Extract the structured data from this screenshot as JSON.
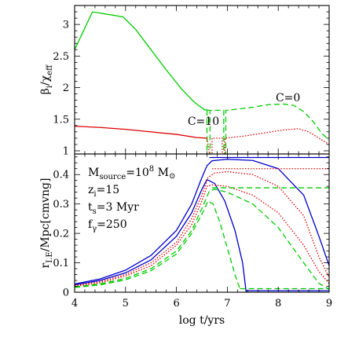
{
  "chart_data": [
    {
      "type": "line",
      "panel": "top",
      "ylabel": "β_i / χ_eff",
      "xlim": [
        4,
        9
      ],
      "ylim": [
        0.95,
        3.3
      ],
      "xticks": [
        "4",
        "5",
        "6",
        "7",
        "8",
        "9"
      ],
      "yticks": [
        1,
        1.5,
        2,
        2.5,
        3
      ],
      "ytick_labels": [
        "1",
        "1.5",
        "2",
        "2.5",
        "3"
      ],
      "annotations": [
        {
          "text": "C=10",
          "x": 6.22,
          "y": 1.41
        },
        {
          "text": "C=0",
          "x": 7.95,
          "y": 1.78
        }
      ],
      "series": [
        {
          "color": "#00cc00",
          "dash": "solid",
          "points": [
            [
              4.0,
              2.6
            ],
            [
              4.35,
              3.2
            ],
            [
              4.95,
              3.12
            ],
            [
              5.2,
              2.92
            ],
            [
              5.5,
              2.6
            ],
            [
              5.8,
              2.28
            ],
            [
              6.1,
              1.98
            ],
            [
              6.35,
              1.77
            ],
            [
              6.55,
              1.65
            ],
            [
              6.65,
              1.64
            ]
          ]
        },
        {
          "color": "#00cc00",
          "dash": "dashed",
          "points": [
            [
              6.6,
              1.64
            ],
            [
              6.6,
              0.95
            ],
            [
              6.66,
              0.95
            ],
            [
              6.66,
              1.64
            ],
            [
              6.93,
              1.64
            ],
            [
              6.93,
              0.95
            ],
            [
              6.97,
              0.95
            ],
            [
              6.97,
              1.64
            ],
            [
              7.2,
              1.66
            ],
            [
              7.5,
              1.69
            ],
            [
              7.8,
              1.73
            ],
            [
              8.1,
              1.74
            ],
            [
              8.3,
              1.72
            ],
            [
              8.5,
              1.62
            ],
            [
              8.7,
              1.45
            ],
            [
              8.85,
              1.28
            ],
            [
              9.0,
              1.17
            ]
          ]
        },
        {
          "color": "#dd0000",
          "dash": "solid",
          "points": [
            [
              4.0,
              1.39
            ],
            [
              4.5,
              1.37
            ],
            [
              5.0,
              1.34
            ],
            [
              5.5,
              1.3
            ],
            [
              6.0,
              1.26
            ],
            [
              6.4,
              1.21
            ],
            [
              6.6,
              1.2
            ]
          ]
        },
        {
          "color": "#dd0000",
          "dash": "dotted",
          "points": [
            [
              6.6,
              1.2
            ],
            [
              6.65,
              0.95
            ],
            [
              6.7,
              0.95
            ],
            [
              6.7,
              1.2
            ],
            [
              6.9,
              1.2
            ],
            [
              6.9,
              0.95
            ],
            [
              6.95,
              0.95
            ],
            [
              6.95,
              1.2
            ],
            [
              7.3,
              1.23
            ],
            [
              7.7,
              1.28
            ],
            [
              8.1,
              1.33
            ],
            [
              8.4,
              1.35
            ],
            [
              8.6,
              1.3
            ],
            [
              8.8,
              1.2
            ],
            [
              9.0,
              1.1
            ]
          ]
        }
      ]
    },
    {
      "type": "line",
      "panel": "bottom",
      "xlabel": "log t/yrs",
      "ylabel": "r_I.E / Mpc[cmvng]",
      "xlim": [
        4,
        9
      ],
      "ylim": [
        0,
        0.47
      ],
      "xticks": [
        "4",
        "5",
        "6",
        "7",
        "8",
        "9"
      ],
      "yticks": [
        0,
        0.1,
        0.2,
        0.3,
        0.4
      ],
      "ytick_labels": [
        "0",
        "0.1",
        "0.2",
        "0.3",
        "0.4"
      ],
      "legend_text": [
        {
          "main": "M",
          "sub": "source",
          "rest": "=10",
          "sup": "8",
          "tail": " M",
          "sym": "⊙"
        },
        {
          "main": "z",
          "sub": "i",
          "rest": "=15"
        },
        {
          "main": "t",
          "sub": "s",
          "rest": "=3 Myr"
        },
        {
          "main": "f",
          "sub": "γ",
          "rest": "=250"
        }
      ],
      "series": [
        {
          "color": "#0000cc",
          "dash": "solid",
          "points": [
            [
              4.0,
              0.028
            ],
            [
              4.5,
              0.045
            ],
            [
              5.0,
              0.075
            ],
            [
              5.5,
              0.125
            ],
            [
              6.0,
              0.21
            ],
            [
              6.3,
              0.3
            ],
            [
              6.5,
              0.39
            ],
            [
              6.6,
              0.43
            ],
            [
              6.7,
              0.447
            ],
            [
              7.0,
              0.452
            ],
            [
              7.5,
              0.448
            ],
            [
              8.0,
              0.42
            ],
            [
              8.5,
              0.33
            ],
            [
              8.8,
              0.19
            ],
            [
              9.0,
              0.09
            ]
          ]
        },
        {
          "color": "#0000cc",
          "dash": "solid",
          "points": [
            [
              4.0,
              0.025
            ],
            [
              4.5,
              0.04
            ],
            [
              5.0,
              0.066
            ],
            [
              5.5,
              0.11
            ],
            [
              6.0,
              0.19
            ],
            [
              6.3,
              0.27
            ],
            [
              6.5,
              0.35
            ],
            [
              6.6,
              0.383
            ],
            [
              6.75,
              0.37
            ],
            [
              6.95,
              0.31
            ],
            [
              7.15,
              0.21
            ],
            [
              7.3,
              0.1
            ],
            [
              7.37,
              0.0
            ]
          ]
        },
        {
          "color": "#0000cc",
          "dash": "solid",
          "points": [
            [
              6.65,
              0.458
            ],
            [
              9.0,
              0.458
            ]
          ]
        },
        {
          "color": "#0000cc",
          "dash": "solid",
          "points": [
            [
              7.37,
              0.005
            ],
            [
              9.0,
              0.005
            ]
          ]
        },
        {
          "color": "#dd0000",
          "dash": "dotted",
          "points": [
            [
              4.0,
              0.023
            ],
            [
              4.5,
              0.036
            ],
            [
              5.0,
              0.06
            ],
            [
              5.5,
              0.1
            ],
            [
              6.0,
              0.17
            ],
            [
              6.3,
              0.25
            ],
            [
              6.5,
              0.33
            ],
            [
              6.62,
              0.39
            ],
            [
              6.75,
              0.405
            ],
            [
              7.0,
              0.41
            ],
            [
              7.5,
              0.4
            ],
            [
              8.0,
              0.36
            ],
            [
              8.5,
              0.26
            ],
            [
              8.8,
              0.12
            ],
            [
              9.0,
              0.05
            ]
          ]
        },
        {
          "color": "#dd0000",
          "dash": "dotted",
          "points": [
            [
              6.7,
              0.42
            ],
            [
              9.0,
              0.42
            ]
          ]
        },
        {
          "color": "#dd0000",
          "dash": "dotted",
          "points": [
            [
              4.0,
              0.02
            ],
            [
              4.5,
              0.032
            ],
            [
              5.0,
              0.055
            ],
            [
              5.5,
              0.09
            ],
            [
              6.0,
              0.16
            ],
            [
              6.3,
              0.23
            ],
            [
              6.5,
              0.31
            ],
            [
              6.6,
              0.36
            ],
            [
              6.7,
              0.365
            ],
            [
              7.0,
              0.36
            ],
            [
              7.5,
              0.33
            ],
            [
              8.0,
              0.27
            ],
            [
              8.5,
              0.16
            ],
            [
              8.8,
              0.07
            ],
            [
              9.0,
              0.03
            ]
          ]
        },
        {
          "color": "#00cc00",
          "dash": "dashed",
          "points": [
            [
              4.0,
              0.018
            ],
            [
              4.5,
              0.028
            ],
            [
              5.0,
              0.047
            ],
            [
              5.5,
              0.08
            ],
            [
              6.0,
              0.14
            ],
            [
              6.3,
              0.21
            ],
            [
              6.5,
              0.285
            ],
            [
              6.65,
              0.345
            ],
            [
              6.75,
              0.35
            ],
            [
              7.0,
              0.34
            ],
            [
              7.5,
              0.3
            ],
            [
              8.0,
              0.22
            ],
            [
              8.5,
              0.1
            ],
            [
              8.8,
              0.03
            ],
            [
              9.0,
              0.01
            ]
          ]
        },
        {
          "color": "#00cc00",
          "dash": "dashed",
          "points": [
            [
              6.7,
              0.355
            ],
            [
              9.0,
              0.355
            ]
          ]
        },
        {
          "color": "#00cc00",
          "dash": "dashed",
          "points": [
            [
              4.0,
              0.016
            ],
            [
              4.5,
              0.025
            ],
            [
              5.0,
              0.042
            ],
            [
              5.5,
              0.073
            ],
            [
              6.0,
              0.13
            ],
            [
              6.3,
              0.2
            ],
            [
              6.5,
              0.265
            ],
            [
              6.62,
              0.31
            ],
            [
              6.72,
              0.3
            ],
            [
              6.85,
              0.24
            ],
            [
              7.0,
              0.15
            ],
            [
              7.15,
              0.06
            ],
            [
              7.25,
              0.01
            ]
          ]
        },
        {
          "color": "#00cc00",
          "dash": "dashed",
          "points": [
            [
              7.25,
              0.012
            ],
            [
              9.0,
              0.012
            ]
          ]
        }
      ]
    }
  ]
}
